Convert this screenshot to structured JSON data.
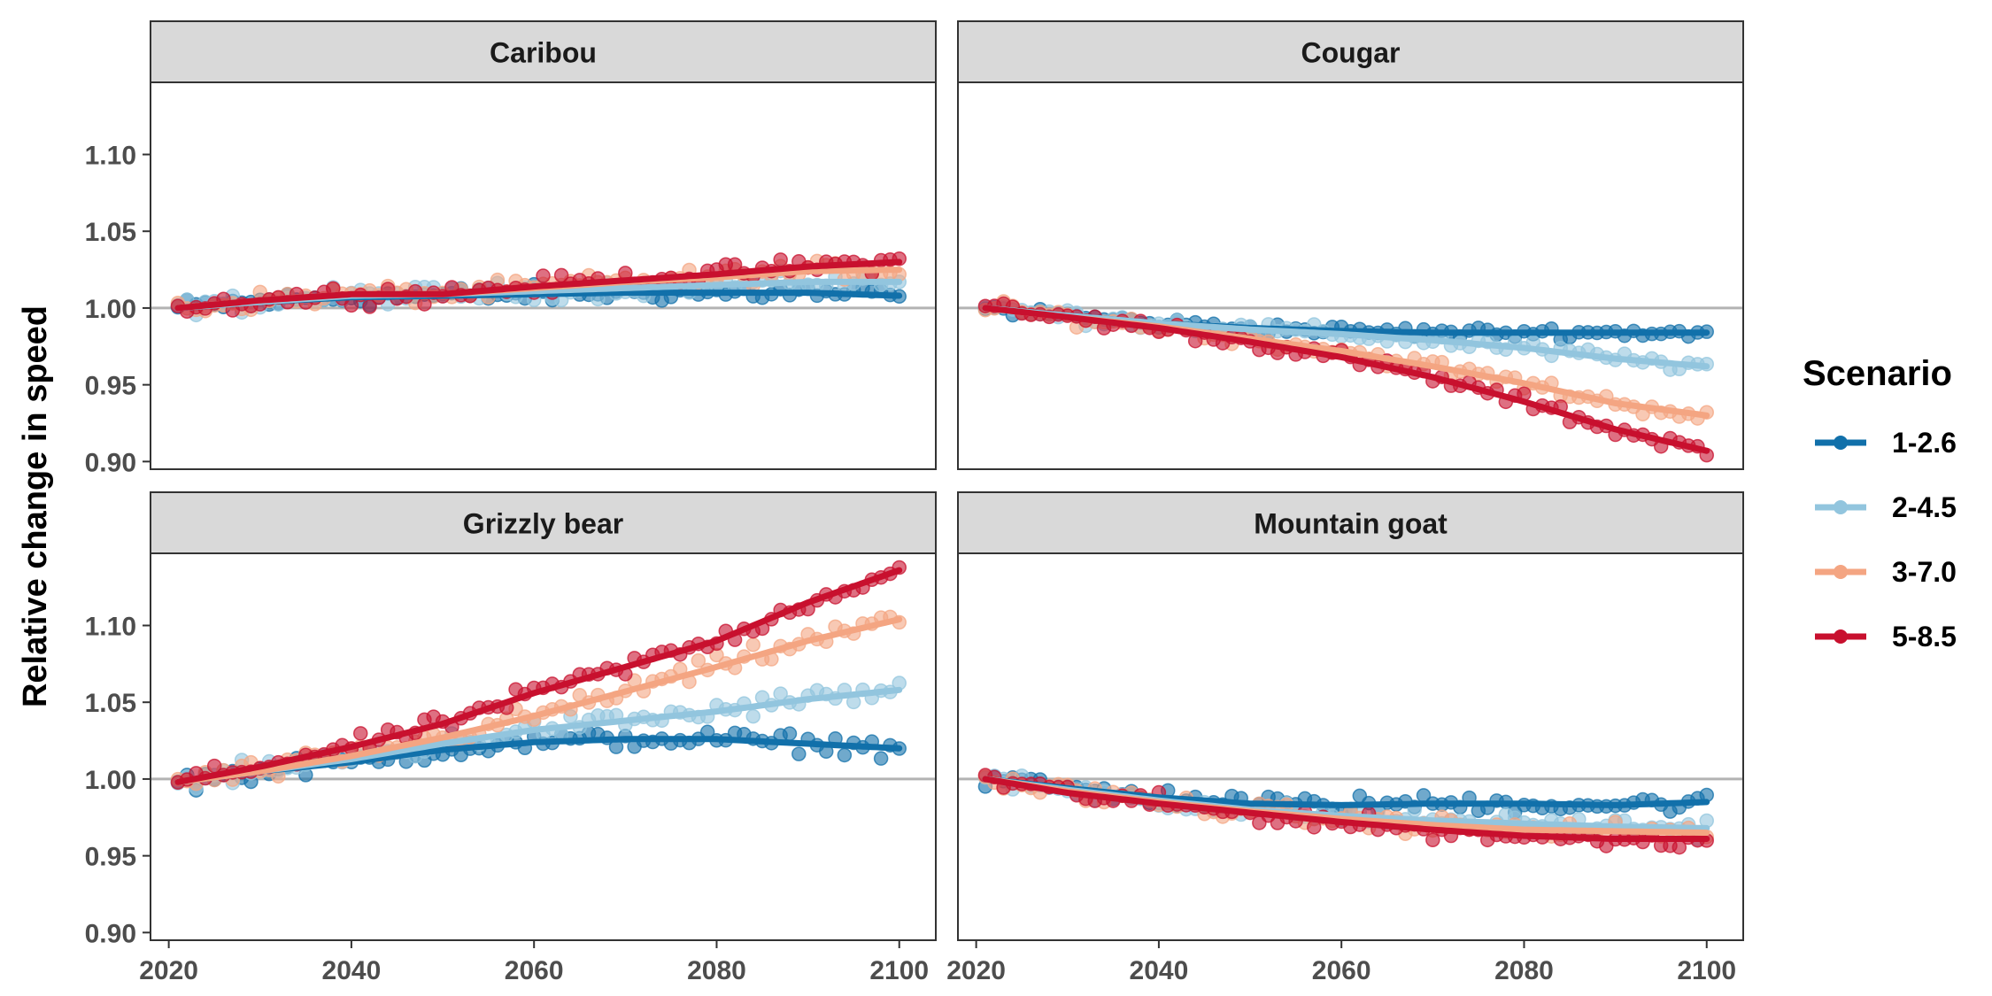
{
  "chart_data": {
    "type": "scatter",
    "ylabel": "Relative change in speed",
    "xlabel": "",
    "xlim": [
      2018,
      2104
    ],
    "ylim": [
      0.895,
      1.147
    ],
    "x_ticks": [
      2020,
      2040,
      2060,
      2080,
      2100
    ],
    "y_ticks": [
      0.9,
      0.95,
      1.0,
      1.05,
      1.1
    ],
    "reference_line": 1.0,
    "grid": false,
    "legend": {
      "title": "Scenario",
      "placement": "right",
      "entries": [
        "1-2.6",
        "2-4.5",
        "3-7.0",
        "5-8.5"
      ]
    },
    "scenarios": [
      {
        "name": "1-2.6",
        "color": "#1170AA"
      },
      {
        "name": "2-4.5",
        "color": "#92C5DE"
      },
      {
        "name": "3-7.0",
        "color": "#F4A582"
      },
      {
        "name": "5-8.5",
        "color": "#C8102E"
      }
    ],
    "panels": [
      {
        "title": "Caribou",
        "series": [
          {
            "name": "1-2.6",
            "trend_x": [
              2021,
              2030,
              2040,
              2050,
              2060,
              2070,
              2080,
              2090,
              2100
            ],
            "trend_y": [
              1.0,
              1.004,
              1.007,
              1.008,
              1.009,
              1.01,
              1.01,
              1.01,
              1.008
            ],
            "noise": 0.005
          },
          {
            "name": "2-4.5",
            "trend_x": [
              2021,
              2030,
              2040,
              2050,
              2060,
              2070,
              2080,
              2090,
              2100
            ],
            "trend_y": [
              1.0,
              1.004,
              1.008,
              1.009,
              1.011,
              1.013,
              1.015,
              1.017,
              1.017
            ],
            "noise": 0.005
          },
          {
            "name": "3-7.0",
            "trend_x": [
              2021,
              2030,
              2040,
              2050,
              2060,
              2070,
              2080,
              2090,
              2100
            ],
            "trend_y": [
              1.0,
              1.005,
              1.009,
              1.009,
              1.013,
              1.017,
              1.02,
              1.024,
              1.025
            ],
            "noise": 0.005
          },
          {
            "name": "5-8.5",
            "trend_x": [
              2021,
              2030,
              2040,
              2050,
              2060,
              2070,
              2080,
              2090,
              2100
            ],
            "trend_y": [
              1.0,
              1.005,
              1.009,
              1.009,
              1.014,
              1.018,
              1.022,
              1.027,
              1.03
            ],
            "noise": 0.005
          }
        ]
      },
      {
        "title": "Cougar",
        "series": [
          {
            "name": "1-2.6",
            "trend_x": [
              2021,
              2030,
              2040,
              2050,
              2060,
              2070,
              2080,
              2090,
              2100
            ],
            "trend_y": [
              1.0,
              0.995,
              0.99,
              0.987,
              0.985,
              0.984,
              0.984,
              0.984,
              0.984
            ],
            "noise": 0.003
          },
          {
            "name": "2-4.5",
            "trend_x": [
              2021,
              2030,
              2040,
              2050,
              2060,
              2070,
              2080,
              2090,
              2100
            ],
            "trend_y": [
              1.0,
              0.995,
              0.99,
              0.986,
              0.983,
              0.979,
              0.974,
              0.967,
              0.962
            ],
            "noise": 0.004
          },
          {
            "name": "3-7.0",
            "trend_x": [
              2021,
              2030,
              2040,
              2050,
              2060,
              2070,
              2080,
              2090,
              2100
            ],
            "trend_y": [
              1.0,
              0.994,
              0.988,
              0.98,
              0.972,
              0.962,
              0.951,
              0.938,
              0.93
            ],
            "noise": 0.004
          },
          {
            "name": "5-8.5",
            "trend_x": [
              2021,
              2030,
              2040,
              2050,
              2060,
              2070,
              2080,
              2090,
              2100
            ],
            "trend_y": [
              1.0,
              0.994,
              0.987,
              0.978,
              0.968,
              0.955,
              0.939,
              0.921,
              0.907
            ],
            "noise": 0.004
          }
        ]
      },
      {
        "title": "Grizzly bear",
        "series": [
          {
            "name": "1-2.6",
            "trend_x": [
              2021,
              2030,
              2040,
              2050,
              2060,
              2070,
              2080,
              2090,
              2100
            ],
            "trend_y": [
              0.998,
              1.005,
              1.011,
              1.019,
              1.024,
              1.026,
              1.026,
              1.023,
              1.02
            ],
            "noise": 0.005
          },
          {
            "name": "2-4.5",
            "trend_x": [
              2021,
              2030,
              2040,
              2050,
              2060,
              2070,
              2080,
              2090,
              2100
            ],
            "trend_y": [
              0.998,
              1.005,
              1.013,
              1.023,
              1.032,
              1.038,
              1.044,
              1.052,
              1.058
            ],
            "noise": 0.006
          },
          {
            "name": "3-7.0",
            "trend_x": [
              2021,
              2030,
              2040,
              2050,
              2060,
              2070,
              2080,
              2090,
              2100
            ],
            "trend_y": [
              0.998,
              1.005,
              1.015,
              1.027,
              1.041,
              1.057,
              1.073,
              1.09,
              1.104
            ],
            "noise": 0.006
          },
          {
            "name": "5-8.5",
            "trend_x": [
              2021,
              2030,
              2040,
              2050,
              2060,
              2070,
              2080,
              2090,
              2100
            ],
            "trend_y": [
              0.998,
              1.008,
              1.021,
              1.036,
              1.056,
              1.073,
              1.09,
              1.115,
              1.136
            ],
            "noise": 0.005
          }
        ]
      },
      {
        "title": "Mountain goat",
        "series": [
          {
            "name": "1-2.6",
            "trend_x": [
              2021,
              2030,
              2040,
              2050,
              2060,
              2070,
              2080,
              2090,
              2100
            ],
            "trend_y": [
              1.0,
              0.994,
              0.988,
              0.984,
              0.983,
              0.984,
              0.984,
              0.983,
              0.985
            ],
            "noise": 0.005
          },
          {
            "name": "2-4.5",
            "trend_x": [
              2021,
              2030,
              2040,
              2050,
              2060,
              2070,
              2080,
              2090,
              2100
            ],
            "trend_y": [
              1.0,
              0.993,
              0.986,
              0.98,
              0.976,
              0.973,
              0.971,
              0.969,
              0.968
            ],
            "noise": 0.005
          },
          {
            "name": "3-7.0",
            "trend_x": [
              2021,
              2030,
              2040,
              2050,
              2060,
              2070,
              2080,
              2090,
              2100
            ],
            "trend_y": [
              1.0,
              0.992,
              0.985,
              0.979,
              0.974,
              0.97,
              0.967,
              0.966,
              0.965
            ],
            "noise": 0.005
          },
          {
            "name": "5-8.5",
            "trend_x": [
              2021,
              2030,
              2040,
              2050,
              2060,
              2070,
              2080,
              2090,
              2100
            ],
            "trend_y": [
              1.0,
              0.991,
              0.984,
              0.978,
              0.972,
              0.967,
              0.963,
              0.961,
              0.961
            ],
            "noise": 0.005
          }
        ]
      }
    ]
  }
}
